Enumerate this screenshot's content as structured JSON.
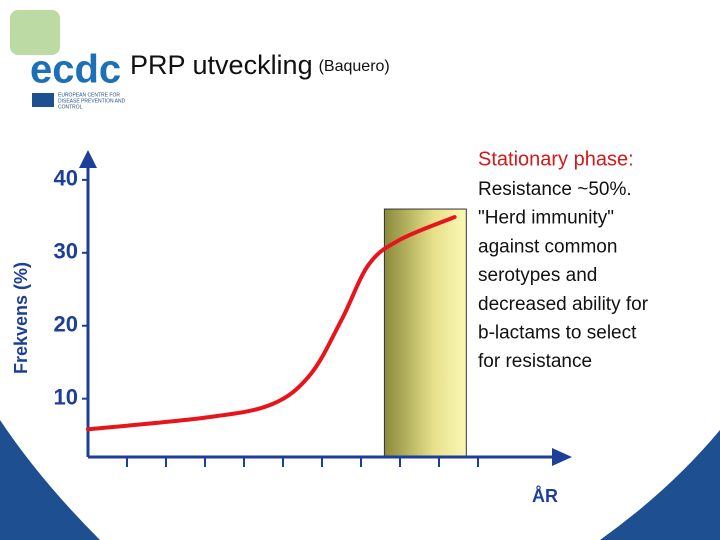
{
  "header": {
    "logo": "ecdc",
    "logo_caption": [
      "EUROPEAN CENTRE FOR",
      "DISEASE PREVENTION AND",
      "CONTROL"
    ],
    "title": "PRP utveckling",
    "subtitle": "(Baquero)"
  },
  "chart_data": {
    "type": "line",
    "ylabel": "Frekvens (%)",
    "xlabel": "ÅR",
    "x": [
      0,
      3,
      4.7,
      5.7,
      6.5,
      7.2,
      8,
      9.4
    ],
    "series": [
      {
        "color": "#e8141c",
        "values": [
          5.8,
          7.4,
          9.2,
          13.3,
          20.8,
          28.4,
          31.8,
          34.9
        ]
      }
    ],
    "xlim": [
      0,
      12
    ],
    "xticks": [
      1,
      2,
      3,
      4,
      5,
      6,
      7,
      8,
      9,
      10
    ],
    "ylim": [
      2,
      43
    ],
    "yticks": [
      10,
      20,
      30,
      40
    ],
    "shaded_region": {
      "x": [
        7.6,
        9.7
      ],
      "top": 36
    }
  },
  "note": {
    "heading": "Stationary phase:",
    "lines": [
      "Resistance ~50%.",
      "\"Herd immunity\"",
      "against common",
      "serotypes and",
      "decreased ability for",
      "b-lactams to select",
      "for resistance"
    ]
  }
}
